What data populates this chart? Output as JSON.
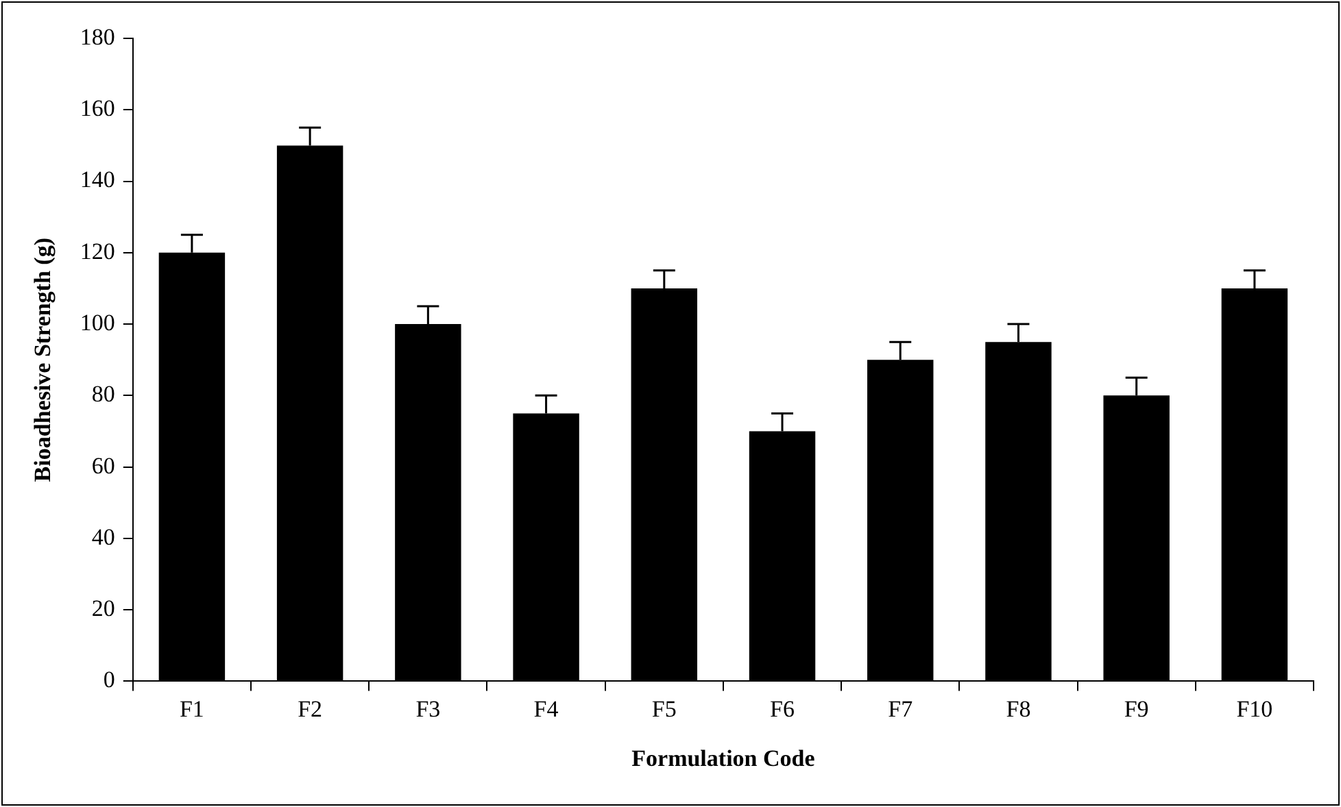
{
  "chart_data": {
    "type": "bar",
    "xlabel": "Formulation Code",
    "ylabel": "Bioadhesive Strength (g)",
    "categories": [
      "F1",
      "F2",
      "F3",
      "F4",
      "F5",
      "F6",
      "F7",
      "F8",
      "F9",
      "F10"
    ],
    "values": [
      120,
      150,
      100,
      75,
      110,
      70,
      90,
      95,
      80,
      110
    ],
    "errors": [
      [
        120,
        125
      ],
      [
        150,
        155
      ],
      [
        100,
        105
      ],
      [
        75,
        80
      ],
      [
        110,
        115
      ],
      [
        70,
        75
      ],
      [
        90,
        95
      ],
      [
        95,
        100
      ],
      [
        80,
        85
      ],
      [
        110,
        115
      ]
    ],
    "color": "#000000",
    "ylim": [
      0,
      180
    ],
    "yticks": [
      0,
      20,
      40,
      60,
      80,
      100,
      120,
      140,
      160,
      180
    ],
    "grid": false,
    "legend": false
  }
}
